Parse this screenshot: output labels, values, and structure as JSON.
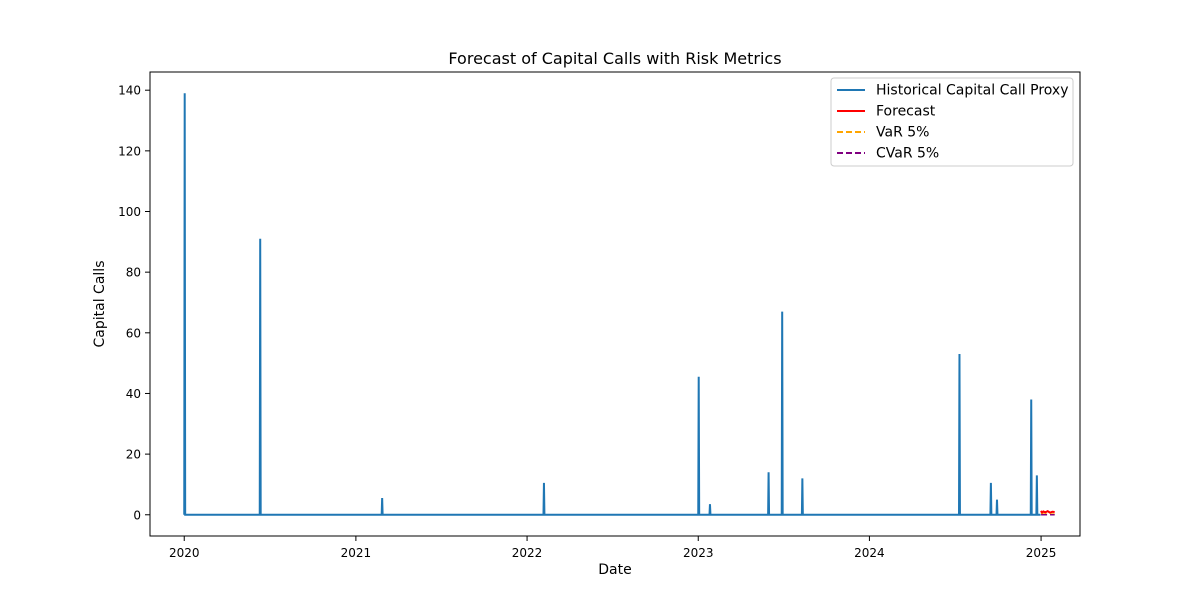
{
  "chart_data": {
    "type": "line",
    "title": "Forecast of Capital Calls with Risk Metrics",
    "xlabel": "Date",
    "ylabel": "Capital Calls",
    "xlim": [
      "2019-10-20",
      "2025-03-25"
    ],
    "ylim": [
      -7,
      146
    ],
    "x_ticks": [
      "2020",
      "2021",
      "2022",
      "2023",
      "2024",
      "2025"
    ],
    "y_ticks": [
      0,
      20,
      40,
      60,
      80,
      100,
      120,
      140
    ],
    "grid": false,
    "legend_position": "upper right",
    "series": [
      {
        "name": "Historical Capital Call Proxy",
        "color": "#1f77b4",
        "style": "solid",
        "x": [
          "2020-01-01",
          "2020-01-02",
          "2020-01-03",
          "2020-06-10",
          "2020-06-11",
          "2020-06-12",
          "2021-02-25",
          "2021-02-26",
          "2021-02-27",
          "2022-02-05",
          "2022-02-06",
          "2022-02-07",
          "2023-01-01",
          "2023-01-02",
          "2023-01-03",
          "2023-01-25",
          "2023-01-26",
          "2023-01-27",
          "2023-05-30",
          "2023-05-31",
          "2023-06-01",
          "2023-06-28",
          "2023-06-29",
          "2023-06-30",
          "2023-08-10",
          "2023-08-11",
          "2023-08-12",
          "2024-07-10",
          "2024-07-11",
          "2024-07-12",
          "2024-09-15",
          "2024-09-16",
          "2024-09-17",
          "2024-09-28",
          "2024-09-29",
          "2024-09-30",
          "2024-12-10",
          "2024-12-11",
          "2024-12-12",
          "2024-12-22",
          "2024-12-23",
          "2024-12-24",
          "2024-12-31"
        ],
        "values": [
          0,
          139,
          0,
          0,
          91,
          0,
          0,
          5.5,
          0,
          0,
          10.5,
          0,
          0,
          45.5,
          0,
          0,
          3.5,
          0,
          0,
          14,
          0,
          0,
          67,
          0,
          0,
          12,
          0,
          0,
          53,
          0,
          0,
          10.5,
          0,
          0,
          5,
          0,
          0,
          38,
          0,
          0,
          13,
          0,
          0
        ]
      },
      {
        "name": "Forecast",
        "color": "#ff0000",
        "style": "solid",
        "x": [
          "2025-01-01",
          "2025-01-03",
          "2025-01-06",
          "2025-01-10",
          "2025-01-15",
          "2025-01-20",
          "2025-01-25",
          "2025-01-30"
        ],
        "values": [
          1.3,
          0.6,
          1.1,
          0.8,
          1.2,
          0.7,
          1.0,
          0.9
        ]
      },
      {
        "name": "VaR 5%",
        "color": "#ffa500",
        "style": "dashed",
        "x": [
          "2025-01-01",
          "2025-01-30"
        ],
        "values": [
          0.2,
          0.2
        ]
      },
      {
        "name": "CVaR 5%",
        "color": "#800080",
        "style": "dashed",
        "x": [
          "2025-01-01",
          "2025-01-30"
        ],
        "values": [
          0.0,
          0.0
        ]
      }
    ]
  }
}
